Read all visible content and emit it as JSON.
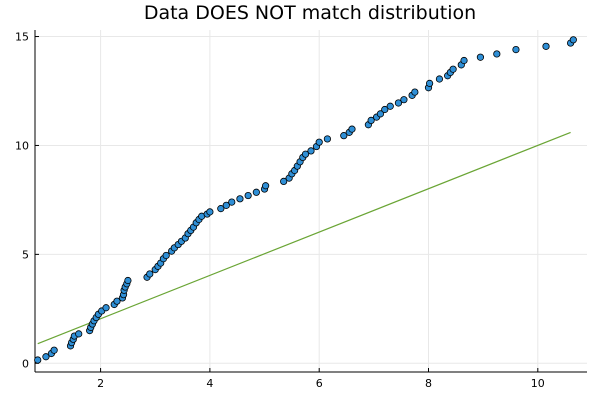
{
  "chart_data": {
    "type": "scatter",
    "title": "Data DOES NOT match distribution",
    "xlabel": "",
    "ylabel": "",
    "xlim": [
      0.8,
      10.9
    ],
    "ylim": [
      -0.4,
      15.3
    ],
    "x_ticks": [
      2,
      4,
      6,
      8,
      10
    ],
    "y_ticks": [
      0,
      5,
      10,
      15
    ],
    "grid": true,
    "legend": "none",
    "colors": {
      "points": "#2f8fd6",
      "line": "#6aa535",
      "point_stroke": "#000000"
    },
    "series": [
      {
        "type": "scatter",
        "points": [
          [
            0.85,
            0.15
          ],
          [
            1.0,
            0.3
          ],
          [
            1.1,
            0.45
          ],
          [
            1.15,
            0.6
          ],
          [
            1.45,
            0.8
          ],
          [
            1.47,
            0.95
          ],
          [
            1.5,
            1.1
          ],
          [
            1.52,
            1.25
          ],
          [
            1.6,
            1.35
          ],
          [
            1.8,
            1.5
          ],
          [
            1.82,
            1.65
          ],
          [
            1.85,
            1.8
          ],
          [
            1.88,
            1.95
          ],
          [
            1.92,
            2.1
          ],
          [
            1.96,
            2.25
          ],
          [
            2.02,
            2.4
          ],
          [
            2.1,
            2.55
          ],
          [
            2.25,
            2.7
          ],
          [
            2.3,
            2.85
          ],
          [
            2.4,
            3.0
          ],
          [
            2.42,
            3.15
          ],
          [
            2.43,
            3.35
          ],
          [
            2.45,
            3.5
          ],
          [
            2.48,
            3.65
          ],
          [
            2.5,
            3.8
          ],
          [
            2.85,
            3.95
          ],
          [
            2.9,
            4.1
          ],
          [
            3.0,
            4.3
          ],
          [
            3.05,
            4.45
          ],
          [
            3.1,
            4.6
          ],
          [
            3.15,
            4.8
          ],
          [
            3.2,
            4.95
          ],
          [
            3.3,
            5.15
          ],
          [
            3.35,
            5.3
          ],
          [
            3.42,
            5.45
          ],
          [
            3.48,
            5.6
          ],
          [
            3.55,
            5.75
          ],
          [
            3.6,
            5.95
          ],
          [
            3.65,
            6.1
          ],
          [
            3.7,
            6.25
          ],
          [
            3.75,
            6.45
          ],
          [
            3.8,
            6.6
          ],
          [
            3.85,
            6.75
          ],
          [
            3.95,
            6.85
          ],
          [
            4.0,
            6.95
          ],
          [
            4.2,
            7.1
          ],
          [
            4.3,
            7.25
          ],
          [
            4.4,
            7.4
          ],
          [
            4.55,
            7.55
          ],
          [
            4.7,
            7.7
          ],
          [
            4.85,
            7.85
          ],
          [
            5.0,
            8.0
          ],
          [
            5.02,
            8.15
          ],
          [
            5.35,
            8.35
          ],
          [
            5.45,
            8.5
          ],
          [
            5.5,
            8.7
          ],
          [
            5.55,
            8.85
          ],
          [
            5.6,
            9.05
          ],
          [
            5.65,
            9.25
          ],
          [
            5.7,
            9.45
          ],
          [
            5.75,
            9.6
          ],
          [
            5.85,
            9.75
          ],
          [
            5.95,
            9.95
          ],
          [
            6.0,
            10.15
          ],
          [
            6.15,
            10.3
          ],
          [
            6.45,
            10.45
          ],
          [
            6.55,
            10.6
          ],
          [
            6.6,
            10.75
          ],
          [
            6.9,
            10.95
          ],
          [
            6.95,
            11.15
          ],
          [
            7.05,
            11.3
          ],
          [
            7.12,
            11.45
          ],
          [
            7.2,
            11.65
          ],
          [
            7.3,
            11.8
          ],
          [
            7.45,
            11.95
          ],
          [
            7.55,
            12.1
          ],
          [
            7.7,
            12.3
          ],
          [
            7.75,
            12.45
          ],
          [
            8.0,
            12.65
          ],
          [
            8.02,
            12.85
          ],
          [
            8.2,
            13.05
          ],
          [
            8.35,
            13.2
          ],
          [
            8.4,
            13.35
          ],
          [
            8.45,
            13.5
          ],
          [
            8.6,
            13.7
          ],
          [
            8.65,
            13.9
          ],
          [
            8.95,
            14.05
          ],
          [
            9.25,
            14.2
          ],
          [
            9.6,
            14.4
          ],
          [
            10.15,
            14.55
          ],
          [
            10.6,
            14.7
          ],
          [
            10.65,
            14.85
          ]
        ]
      },
      {
        "type": "line",
        "points": [
          [
            0.85,
            0.9
          ],
          [
            10.6,
            10.6
          ]
        ]
      }
    ]
  }
}
